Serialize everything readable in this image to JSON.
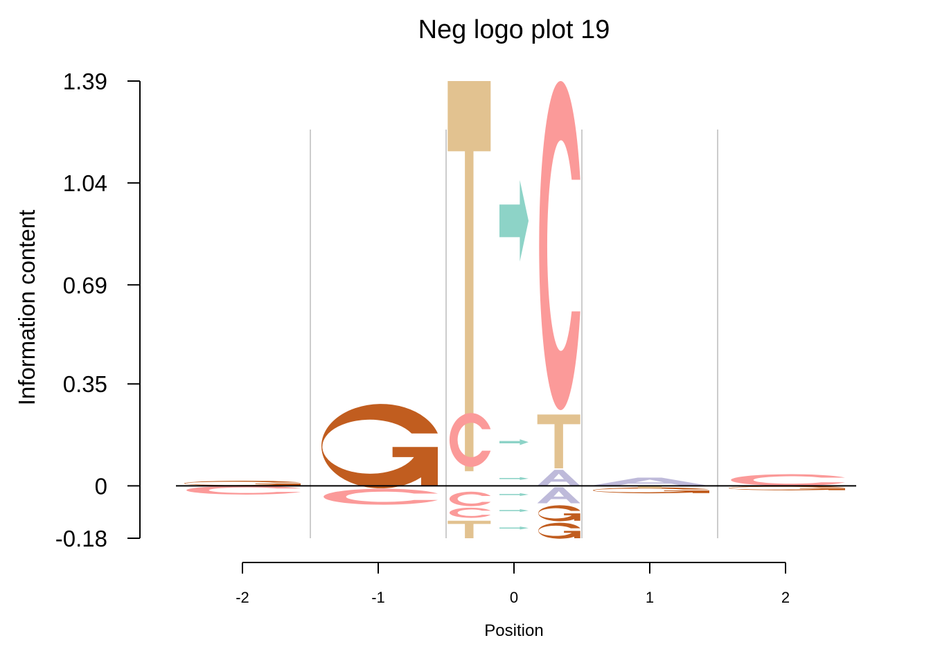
{
  "chart_data": {
    "type": "sequence-logo",
    "title": "Neg logo plot 19",
    "xlabel": "Position",
    "ylabel": "Information content",
    "ylim": [
      -0.18,
      1.39
    ],
    "yticks": [
      "1.39",
      "1.04",
      "0.69",
      "0.35",
      "0",
      "-0.18"
    ],
    "xticks": [
      -2,
      -1,
      0,
      1,
      2
    ],
    "xtick_labels": [
      "-2",
      "-1",
      "0",
      "1",
      "2"
    ],
    "colors": {
      "A": "#BEBADA",
      "C": "#FB9A99",
      "G": "#C15D1F",
      "T": "#E2C290",
      "arrow": "#8DD3C7"
    },
    "columns": [
      {
        "pos": -2.5,
        "letters": [
          {
            "s": "G",
            "from": 0.0,
            "to": 0.018
          },
          {
            "s": "C",
            "from": -0.03,
            "to": 0.0
          }
        ]
      },
      {
        "pos": -1,
        "letters": [
          {
            "s": "G",
            "from": 0.0,
            "to": 0.29
          },
          {
            "s": "C",
            "from": -0.065,
            "to": -0.01
          }
        ]
      },
      {
        "pos": -0.33,
        "letters": [
          {
            "s": "T",
            "from": 0.05,
            "to": 1.39
          },
          {
            "s": "C",
            "from": 0.065,
            "to": 0.25
          },
          {
            "s": "C",
            "from": -0.07,
            "to": -0.02
          },
          {
            "s": "C",
            "from": -0.11,
            "to": -0.075
          },
          {
            "s": "T",
            "from": -0.18,
            "to": -0.12
          }
        ]
      },
      {
        "pos": 0,
        "letters": [
          {
            "s": "arrow",
            "from": 0.77,
            "to": 1.05
          },
          {
            "s": "arrow",
            "from": 0.14,
            "to": 0.16
          },
          {
            "s": "arrow",
            "from": 0.02,
            "to": 0.03
          },
          {
            "s": "arrow",
            "from": -0.035,
            "to": -0.025
          },
          {
            "s": "arrow",
            "from": -0.09,
            "to": -0.08
          },
          {
            "s": "arrow",
            "from": -0.15,
            "to": -0.14
          }
        ]
      },
      {
        "pos": 0.33,
        "letters": [
          {
            "s": "C",
            "from": 0.26,
            "to": 1.39
          },
          {
            "s": "T",
            "from": 0.06,
            "to": 0.245
          },
          {
            "s": "A",
            "from": 0.0,
            "to": 0.055
          },
          {
            "s": "A",
            "from": -0.06,
            "to": -0.005
          },
          {
            "s": "G",
            "from": -0.12,
            "to": -0.065
          },
          {
            "s": "G",
            "from": -0.18,
            "to": -0.125
          }
        ]
      },
      {
        "pos": 1,
        "letters": [
          {
            "s": "A",
            "from": 0.0,
            "to": 0.028
          },
          {
            "s": "G",
            "from": -0.025,
            "to": -0.005
          },
          {
            "s": "T",
            "from": -0.008,
            "to": 0.0
          }
        ]
      },
      {
        "pos": 2,
        "letters": [
          {
            "s": "C",
            "from": 0.0,
            "to": 0.04
          },
          {
            "s": "G",
            "from": -0.015,
            "to": 0.0
          }
        ]
      }
    ]
  }
}
